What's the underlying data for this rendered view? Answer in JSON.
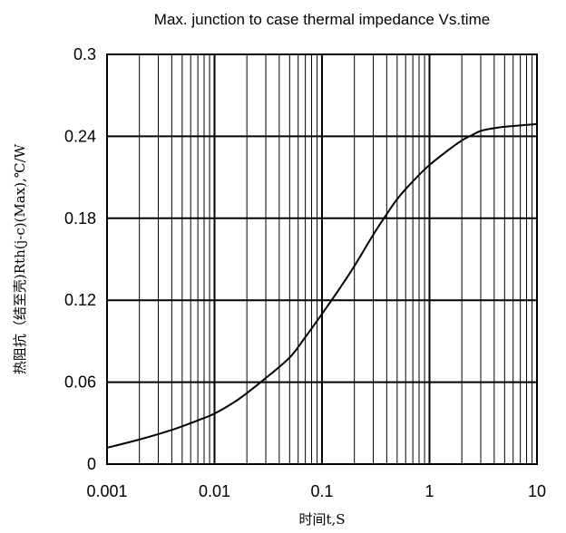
{
  "chart_data": {
    "type": "line",
    "title": "Max. junction to case thermal impedance Vs.time",
    "xlabel": "时间t,S",
    "ylabel": "热阻抗（结至壳)Rth(j-c)(Max),℃/W",
    "x_scale": "log",
    "xlim": [
      0.001,
      10
    ],
    "ylim": [
      0,
      0.3
    ],
    "x_ticks": [
      "0.001",
      "0.01",
      "0.1",
      "1",
      "10"
    ],
    "y_ticks": [
      "0",
      "0.06",
      "0.12",
      "0.18",
      "0.24",
      "0.3"
    ],
    "grid": true,
    "legend": "none",
    "series": [
      {
        "line_color": "#000000",
        "x": [
          0.001,
          0.002,
          0.004,
          0.007,
          0.01,
          0.015,
          0.02,
          0.03,
          0.05,
          0.07,
          0.1,
          0.15,
          0.2,
          0.3,
          0.4,
          0.5,
          0.7,
          1,
          1.5,
          2,
          2.5,
          3,
          4,
          5,
          7,
          10
        ],
        "y": [
          0.012,
          0.018,
          0.025,
          0.032,
          0.037,
          0.045,
          0.052,
          0.063,
          0.078,
          0.093,
          0.11,
          0.13,
          0.145,
          0.168,
          0.183,
          0.194,
          0.207,
          0.219,
          0.23,
          0.237,
          0.241,
          0.244,
          0.246,
          0.247,
          0.248,
          0.249
        ]
      }
    ]
  }
}
